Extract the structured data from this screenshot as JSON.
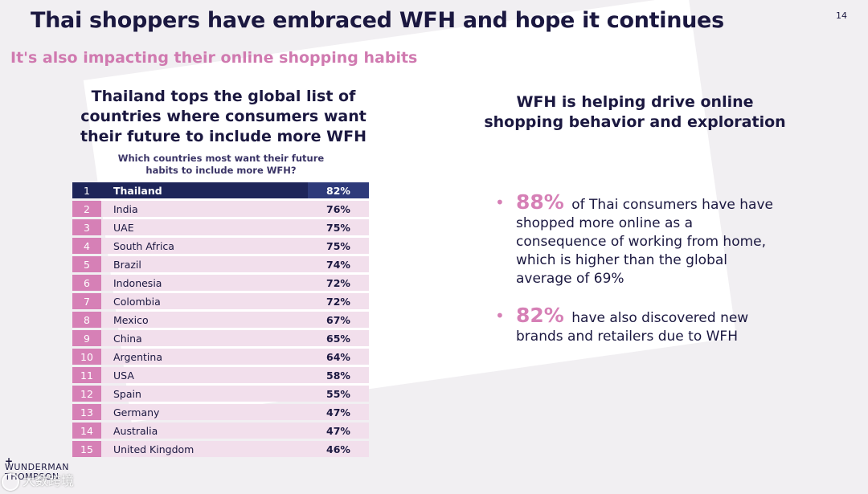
{
  "slide": {
    "title": "Thai shoppers have embraced WFH and hope it continues",
    "page_number": "14",
    "subtitle": "It's also impacting their online shopping habits"
  },
  "left": {
    "heading": "Thailand tops the global list of countries where consumers want their future to include more WFH",
    "table_question": "Which countries most want their future habits to include more WFH?",
    "rows": [
      {
        "rank": "1",
        "country": "Thailand",
        "percent": "82%"
      },
      {
        "rank": "2",
        "country": "India",
        "percent": "76%"
      },
      {
        "rank": "3",
        "country": "UAE",
        "percent": "75%"
      },
      {
        "rank": "4",
        "country": "South Africa",
        "percent": "75%"
      },
      {
        "rank": "5",
        "country": "Brazil",
        "percent": "74%"
      },
      {
        "rank": "6",
        "country": "Indonesia",
        "percent": "72%"
      },
      {
        "rank": "7",
        "country": "Colombia",
        "percent": "72%"
      },
      {
        "rank": "8",
        "country": "Mexico",
        "percent": "67%"
      },
      {
        "rank": "9",
        "country": "China",
        "percent": "65%"
      },
      {
        "rank": "10",
        "country": "Argentina",
        "percent": "64%"
      },
      {
        "rank": "11",
        "country": "USA",
        "percent": "58%"
      },
      {
        "rank": "12",
        "country": "Spain",
        "percent": "55%"
      },
      {
        "rank": "13",
        "country": "Germany",
        "percent": "47%"
      },
      {
        "rank": "14",
        "country": "Australia",
        "percent": "47%"
      },
      {
        "rank": "15",
        "country": "United Kingdom",
        "percent": "46%"
      }
    ]
  },
  "right": {
    "heading": "WFH is helping drive online shopping behavior and exploration",
    "bullets": [
      {
        "stat": "88%",
        "text": "of Thai consumers have have shopped more online as a consequence of working from home, which is higher than the global average of 69%"
      },
      {
        "stat": "82%",
        "text": "have also discovered new brands and retailers due to WFH"
      }
    ]
  },
  "footer": {
    "logo_plus": "+",
    "logo_line1": "WUNDERMAN",
    "logo_line2": "THOMPSON",
    "watermark": "大数跨境"
  },
  "colors": {
    "navy": "#1b1840",
    "pink": "#d680b6",
    "subtitle_pink": "#d07ab0",
    "row_bg": "#f2dfec"
  }
}
